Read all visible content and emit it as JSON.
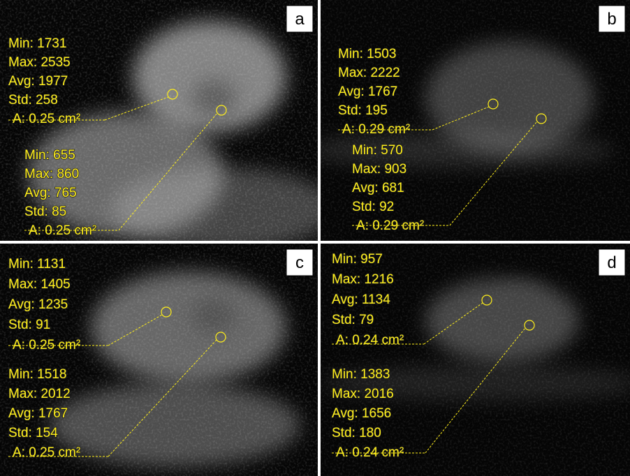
{
  "panels": [
    {
      "label": "a",
      "rois": [
        {
          "lines": [
            "Min: 1731",
            "Max: 2535",
            "Avg: 1977",
            "Std: 258",
            "A: 0.25 cm²"
          ]
        },
        {
          "lines": [
            "Min: 655",
            "Max: 860",
            "Avg: 765",
            "Std: 85",
            "A: 0.25 cm²"
          ]
        }
      ]
    },
    {
      "label": "b",
      "rois": [
        {
          "lines": [
            "Min: 1503",
            "Max: 2222",
            "Avg: 1767",
            "Std: 195",
            "A: 0.29 cm²"
          ]
        },
        {
          "lines": [
            "Min: 570",
            "Max: 903",
            "Avg: 681",
            "Std: 92",
            "A: 0.29 cm²"
          ]
        }
      ]
    },
    {
      "label": "c",
      "rois": [
        {
          "lines": [
            "Min: 1131",
            "Max: 1405",
            "Avg: 1235",
            "Std: 91",
            "A: 0.25 cm²"
          ]
        },
        {
          "lines": [
            "Min: 1518",
            "Max: 2012",
            "Avg: 1767",
            "Std: 154",
            "A: 0.25 cm²"
          ]
        }
      ]
    },
    {
      "label": "d",
      "rois": [
        {
          "lines": [
            "Min: 957",
            "Max: 1216",
            "Avg: 1134",
            "Std: 79",
            "A: 0.24 cm²"
          ]
        },
        {
          "lines": [
            "Min: 1383",
            "Max: 2016",
            "Avg: 1656",
            "Std: 180",
            "A: 0.24 cm²"
          ]
        }
      ]
    }
  ]
}
